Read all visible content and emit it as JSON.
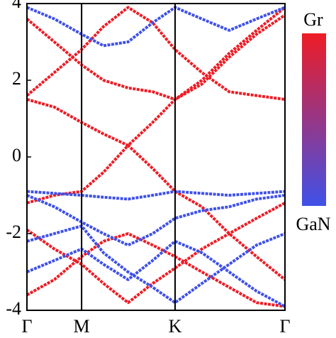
{
  "chart_data": {
    "type": "line",
    "x": [
      0,
      0.5,
      1.0,
      1.4,
      1.85,
      2.3,
      2.71,
      3.2,
      3.7,
      4.2,
      4.72
    ],
    "xlim": [
      0,
      4.72
    ],
    "xticks": [
      {
        "value": 0,
        "label": "Γ"
      },
      {
        "value": 1.0,
        "label": "M"
      },
      {
        "value": 2.71,
        "label": "K"
      },
      {
        "value": 4.72,
        "label": "Γ"
      }
    ],
    "ylim": [
      -4,
      4
    ],
    "yticks": [
      -4,
      -2,
      0,
      2,
      4
    ],
    "series": [
      {
        "color": "#ee1c25",
        "values": [
          1.5,
          1.3,
          0.9,
          0.6,
          0.3,
          0.9,
          1.5,
          1.9,
          2.6,
          3.2,
          3.7
        ]
      },
      {
        "color": "#ee1c25",
        "values": [
          -1.2,
          -1.0,
          -0.9,
          -0.4,
          0.3,
          -0.3,
          -0.9,
          -1.3,
          -2.0,
          -2.6,
          -3.2
        ]
      },
      {
        "color": "#ee1c25",
        "values": [
          1.6,
          2.2,
          2.8,
          3.4,
          3.9,
          3.5,
          2.8,
          2.2,
          1.7,
          1.6,
          1.5
        ]
      },
      {
        "color": "#ee1c25",
        "values": [
          3.6,
          3.0,
          2.4,
          2.0,
          1.8,
          1.7,
          1.5,
          2.0,
          2.7,
          3.3,
          3.9
        ]
      },
      {
        "color": "#ee1c25",
        "values": [
          -1.9,
          -2.4,
          -2.8,
          -3.3,
          -3.8,
          -3.3,
          -2.9,
          -2.4,
          -2.0,
          -1.6,
          -1.2
        ]
      },
      {
        "color": "#ee1c25",
        "values": [
          -3.6,
          -3.2,
          -2.6,
          -2.2,
          -2.0,
          -2.3,
          -2.6,
          -3.0,
          -3.4,
          -3.8,
          -3.9
        ]
      },
      {
        "color": "#3f51e8",
        "values": [
          -0.9,
          -0.95,
          -1.0,
          -1.05,
          -1.1,
          -1.0,
          -0.9,
          -0.95,
          -1.0,
          -0.95,
          -0.9
        ]
      },
      {
        "color": "#3f51e8",
        "values": [
          -1.0,
          -1.3,
          -1.7,
          -2.0,
          -2.3,
          -2.0,
          -1.6,
          -1.4,
          -1.3,
          -1.1,
          -1.0
        ]
      },
      {
        "color": "#3f51e8",
        "values": [
          -2.2,
          -2.0,
          -1.8,
          -2.5,
          -3.0,
          -3.4,
          -3.8,
          -3.3,
          -2.8,
          -2.3,
          -2.0
        ]
      },
      {
        "color": "#3f51e8",
        "values": [
          3.9,
          3.6,
          3.2,
          2.9,
          3.0,
          3.5,
          3.9,
          3.6,
          3.3,
          3.6,
          3.9
        ]
      },
      {
        "color": "#3f51e8",
        "values": [
          -3.0,
          -2.7,
          -2.4,
          -2.8,
          -3.2,
          -2.7,
          -2.2,
          -2.5,
          -3.0,
          -3.5,
          -3.9
        ]
      }
    ],
    "colorbar": {
      "top_label": "Gr",
      "bottom_label": "GaN",
      "top_color": "#ee1c25",
      "bottom_color": "#3f51e8"
    }
  }
}
